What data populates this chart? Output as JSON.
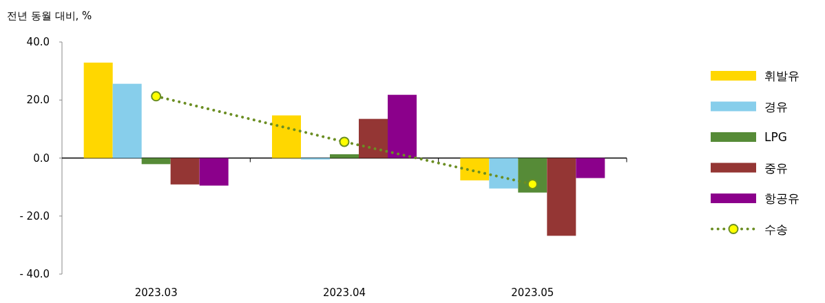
{
  "chart_data": {
    "type": "bar",
    "ylabel": "전년 동월 대비, %",
    "categories": [
      "2023.03",
      "2023.04",
      "2023.05"
    ],
    "series": [
      {
        "name": "휘발유",
        "color": "#ffd700",
        "values": [
          32.9,
          14.7,
          -7.7
        ]
      },
      {
        "name": "경유",
        "color": "#87ceeb",
        "values": [
          25.6,
          -0.5,
          -10.5
        ]
      },
      {
        "name": "LPG",
        "color": "#568b37",
        "values": [
          -2.1,
          1.3,
          -11.9
        ]
      },
      {
        "name": "중유",
        "color": "#943634",
        "values": [
          -9.1,
          13.5,
          -26.8
        ]
      },
      {
        "name": "항공유",
        "color": "#8b008b",
        "values": [
          -9.5,
          21.8,
          -6.9
        ]
      },
      {
        "name": "수송",
        "type": "line",
        "color": "#6b8e23",
        "marker": "circle",
        "line_style": "dotted",
        "values": [
          21.3,
          5.6,
          -9.0
        ]
      }
    ],
    "ylim": [
      -40,
      40
    ],
    "yticks": [
      {
        "value": -40,
        "label": "- 40.0"
      },
      {
        "value": -20,
        "label": "- 20.0"
      },
      {
        "value": 0,
        "label": "0.0"
      },
      {
        "value": 20,
        "label": "20.0"
      },
      {
        "value": 40,
        "label": "40.0"
      }
    ],
    "legend": "right"
  }
}
